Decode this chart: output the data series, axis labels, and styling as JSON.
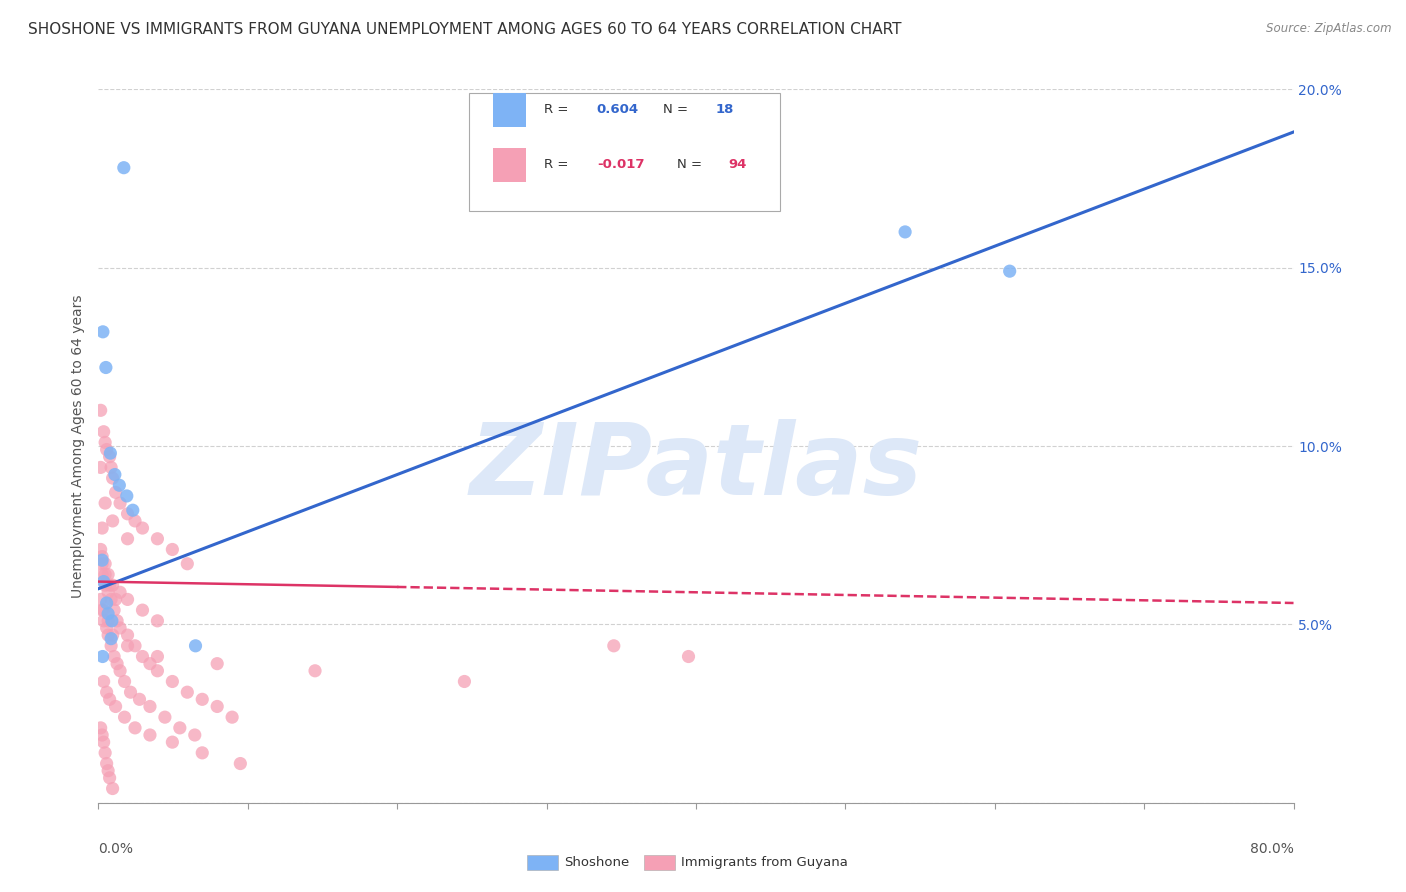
{
  "title": "SHOSHONE VS IMMIGRANTS FROM GUYANA UNEMPLOYMENT AMONG AGES 60 TO 64 YEARS CORRELATION CHART",
  "source": "Source: ZipAtlas.com",
  "ylabel": "Unemployment Among Ages 60 to 64 years",
  "watermark": "ZIPatlas",
  "xlim": [
    0,
    80
  ],
  "ylim": [
    0,
    20
  ],
  "shoshone_points": [
    [
      0.3,
      13.2
    ],
    [
      0.5,
      12.2
    ],
    [
      0.8,
      9.8
    ],
    [
      1.1,
      9.2
    ],
    [
      1.4,
      8.9
    ],
    [
      1.9,
      8.6
    ],
    [
      2.3,
      8.2
    ],
    [
      1.7,
      17.8
    ],
    [
      0.25,
      6.8
    ],
    [
      0.35,
      6.2
    ],
    [
      0.55,
      5.6
    ],
    [
      0.65,
      5.3
    ],
    [
      0.9,
      5.1
    ],
    [
      0.85,
      4.6
    ],
    [
      6.5,
      4.4
    ],
    [
      54,
      16.0
    ],
    [
      61,
      14.9
    ],
    [
      0.28,
      4.1
    ]
  ],
  "guyana_points": [
    [
      0.15,
      11.0
    ],
    [
      0.35,
      10.4
    ],
    [
      0.45,
      10.1
    ],
    [
      0.55,
      9.9
    ],
    [
      0.75,
      9.7
    ],
    [
      0.85,
      9.4
    ],
    [
      0.95,
      9.1
    ],
    [
      1.15,
      8.7
    ],
    [
      1.45,
      8.4
    ],
    [
      1.95,
      8.1
    ],
    [
      2.45,
      7.9
    ],
    [
      2.95,
      7.7
    ],
    [
      3.95,
      7.4
    ],
    [
      4.95,
      7.1
    ],
    [
      5.95,
      6.7
    ],
    [
      0.25,
      6.4
    ],
    [
      0.45,
      6.1
    ],
    [
      0.65,
      5.9
    ],
    [
      0.85,
      5.7
    ],
    [
      1.05,
      5.4
    ],
    [
      1.25,
      5.1
    ],
    [
      1.45,
      4.9
    ],
    [
      1.95,
      4.7
    ],
    [
      2.45,
      4.4
    ],
    [
      2.95,
      4.1
    ],
    [
      3.45,
      3.9
    ],
    [
      3.95,
      3.7
    ],
    [
      4.95,
      3.4
    ],
    [
      5.95,
      3.1
    ],
    [
      6.95,
      2.9
    ],
    [
      7.95,
      2.7
    ],
    [
      8.95,
      2.4
    ],
    [
      0.15,
      2.1
    ],
    [
      0.25,
      1.9
    ],
    [
      0.35,
      1.7
    ],
    [
      0.45,
      1.4
    ],
    [
      0.55,
      1.1
    ],
    [
      0.65,
      0.9
    ],
    [
      0.75,
      0.7
    ],
    [
      0.95,
      0.4
    ],
    [
      0.25,
      5.4
    ],
    [
      0.35,
      5.1
    ],
    [
      0.55,
      4.9
    ],
    [
      0.65,
      4.7
    ],
    [
      0.85,
      4.4
    ],
    [
      1.05,
      4.1
    ],
    [
      1.25,
      3.9
    ],
    [
      1.45,
      3.7
    ],
    [
      1.75,
      3.4
    ],
    [
      2.15,
      3.1
    ],
    [
      2.75,
      2.9
    ],
    [
      3.45,
      2.7
    ],
    [
      4.45,
      2.4
    ],
    [
      5.45,
      2.1
    ],
    [
      6.45,
      1.9
    ],
    [
      0.15,
      7.1
    ],
    [
      0.25,
      6.9
    ],
    [
      0.45,
      6.7
    ],
    [
      0.65,
      6.4
    ],
    [
      0.95,
      6.1
    ],
    [
      1.45,
      5.9
    ],
    [
      1.95,
      5.7
    ],
    [
      2.95,
      5.4
    ],
    [
      3.95,
      5.1
    ],
    [
      34.5,
      4.4
    ],
    [
      0.15,
      9.4
    ],
    [
      0.45,
      8.4
    ],
    [
      0.95,
      7.9
    ],
    [
      1.95,
      7.4
    ],
    [
      0.25,
      7.7
    ],
    [
      0.35,
      3.4
    ],
    [
      0.55,
      3.1
    ],
    [
      0.75,
      2.9
    ],
    [
      1.15,
      2.7
    ],
    [
      1.75,
      2.4
    ],
    [
      2.45,
      2.1
    ],
    [
      3.45,
      1.9
    ],
    [
      4.95,
      1.7
    ],
    [
      6.95,
      1.4
    ],
    [
      9.5,
      1.1
    ],
    [
      0.15,
      5.7
    ],
    [
      0.35,
      5.4
    ],
    [
      0.65,
      5.1
    ],
    [
      0.95,
      4.7
    ],
    [
      1.95,
      4.4
    ],
    [
      3.95,
      4.1
    ],
    [
      7.95,
      3.9
    ],
    [
      14.5,
      3.7
    ],
    [
      24.5,
      3.4
    ],
    [
      39.5,
      4.1
    ],
    [
      0.25,
      6.7
    ],
    [
      0.45,
      6.4
    ],
    [
      0.75,
      6.1
    ],
    [
      1.15,
      5.7
    ]
  ],
  "shoshone_color": "#7eb3f5",
  "guyana_color": "#f5a0b5",
  "shoshone_line_color": "#3366cc",
  "guyana_line_color": "#dd3366",
  "background_color": "#ffffff",
  "grid_color": "#cccccc",
  "blue_line_x0": 0,
  "blue_line_y0": 6.0,
  "blue_line_x1": 80,
  "blue_line_y1": 18.8,
  "pink_line_x0": 0,
  "pink_line_y0": 6.2,
  "pink_line_x1": 80,
  "pink_line_y1": 5.6,
  "pink_solid_end_x": 20,
  "title_fontsize": 11,
  "axis_label_fontsize": 10,
  "tick_fontsize": 10,
  "watermark_fontsize": 72,
  "watermark_color": "#dde8f8"
}
